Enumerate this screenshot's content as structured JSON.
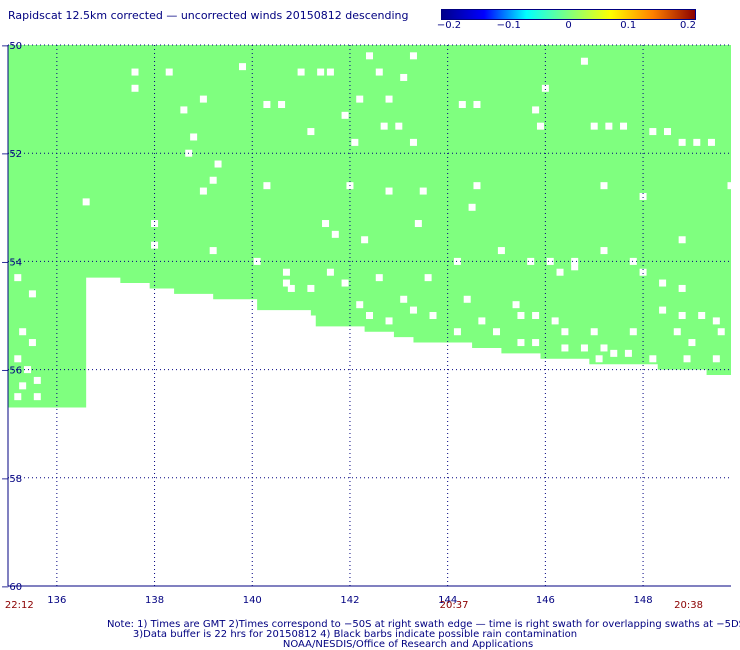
{
  "title": "Rapidscat 12.5km corrected — uncorrected winds 20150812 descending",
  "colorbar": {
    "ticks": [
      "−0.2",
      "−0.1",
      "0",
      "0.1",
      "0.2"
    ],
    "range": [
      -0.2,
      0.2
    ],
    "stops": [
      "#00008b",
      "#0000ff",
      "#00ffff",
      "#7fff7f",
      "#ffff00",
      "#ff8000",
      "#8b0000"
    ]
  },
  "chart_data": {
    "type": "heatmap",
    "x_ticks": [
      "136",
      "138",
      "140",
      "142",
      "144",
      "146",
      "148"
    ],
    "y_ticks": [
      "−50",
      "−52",
      "−54",
      "−56",
      "−58",
      "−60"
    ],
    "xlim": [
      135.0,
      149.8
    ],
    "ylim": [
      -60,
      -50
    ],
    "grid": true,
    "swath_value": 0.0,
    "swath_color": "#7fff7f",
    "swath_boundary": {
      "lon": [
        135.0,
        135.5,
        136.0,
        136.6,
        136.7,
        137.3,
        137.5,
        137.9,
        138.0,
        138.4,
        138.5,
        139.2,
        139.3,
        140.1,
        140.4,
        141.2,
        141.3,
        142.3,
        142.5,
        142.9,
        143.3,
        143.8,
        144.0,
        144.5,
        145.1,
        145.9,
        146.4,
        146.9,
        147.4,
        147.9,
        148.3,
        148.7,
        149.0,
        149.3,
        149.6,
        149.8
      ],
      "lat": [
        -56.7,
        -56.7,
        -56.7,
        -56.7,
        -54.3,
        -54.3,
        -54.4,
        -54.4,
        -54.5,
        -54.5,
        -54.6,
        -54.6,
        -54.7,
        -54.7,
        -54.9,
        -54.9,
        -55.0,
        -55.2,
        -55.3,
        -55.3,
        -55.4,
        -55.5,
        -55.5,
        -55.5,
        -55.6,
        -55.7,
        -55.8,
        -55.8,
        -55.9,
        -55.9,
        -55.9,
        -56.0,
        -56.0,
        -56.0,
        -56.1,
        -56.1
      ]
    },
    "missing_cells": [
      [
        137.6,
        -50.5
      ],
      [
        137.6,
        -50.8
      ],
      [
        138.3,
        -50.5
      ],
      [
        139.8,
        -50.4
      ],
      [
        141.0,
        -50.5
      ],
      [
        141.4,
        -50.5
      ],
      [
        141.6,
        -50.5
      ],
      [
        142.4,
        -50.2
      ],
      [
        142.6,
        -50.5
      ],
      [
        143.3,
        -50.2
      ],
      [
        143.1,
        -50.6
      ],
      [
        146.8,
        -50.3
      ],
      [
        146.0,
        -50.8
      ],
      [
        138.6,
        -51.2
      ],
      [
        139.0,
        -51.0
      ],
      [
        140.3,
        -51.1
      ],
      [
        140.6,
        -51.1
      ],
      [
        141.9,
        -51.3
      ],
      [
        142.2,
        -51.0
      ],
      [
        142.8,
        -51.0
      ],
      [
        144.3,
        -51.1
      ],
      [
        144.6,
        -51.1
      ],
      [
        145.8,
        -51.2
      ],
      [
        145.9,
        -51.5
      ],
      [
        147.0,
        -51.5
      ],
      [
        147.3,
        -51.5
      ],
      [
        147.6,
        -51.5
      ],
      [
        148.2,
        -51.6
      ],
      [
        148.5,
        -51.6
      ],
      [
        148.8,
        -51.8
      ],
      [
        149.1,
        -51.8
      ],
      [
        149.4,
        -51.8
      ],
      [
        141.2,
        -51.6
      ],
      [
        142.1,
        -51.8
      ],
      [
        142.7,
        -51.5
      ],
      [
        143.0,
        -51.5
      ],
      [
        143.3,
        -51.8
      ],
      [
        138.8,
        -51.7
      ],
      [
        138.7,
        -52.0
      ],
      [
        139.3,
        -52.2
      ],
      [
        139.2,
        -52.5
      ],
      [
        139.0,
        -52.7
      ],
      [
        136.6,
        -52.9
      ],
      [
        140.3,
        -52.6
      ],
      [
        142.0,
        -52.6
      ],
      [
        142.8,
        -52.7
      ],
      [
        143.5,
        -52.7
      ],
      [
        144.6,
        -52.6
      ],
      [
        144.5,
        -53.0
      ],
      [
        147.2,
        -52.6
      ],
      [
        148.0,
        -52.8
      ],
      [
        149.8,
        -52.6
      ],
      [
        138.0,
        -53.3
      ],
      [
        138.0,
        -53.7
      ],
      [
        139.2,
        -53.8
      ],
      [
        140.1,
        -54.0
      ],
      [
        141.5,
        -53.3
      ],
      [
        141.7,
        -53.5
      ],
      [
        142.3,
        -53.6
      ],
      [
        143.4,
        -53.3
      ],
      [
        144.2,
        -54.0
      ],
      [
        145.1,
        -53.8
      ],
      [
        145.7,
        -54.0
      ],
      [
        146.1,
        -54.0
      ],
      [
        146.6,
        -54.0
      ],
      [
        147.2,
        -53.8
      ],
      [
        147.8,
        -54.0
      ],
      [
        148.8,
        -53.6
      ],
      [
        135.2,
        -54.3
      ],
      [
        135.5,
        -54.6
      ],
      [
        140.7,
        -54.2
      ],
      [
        140.7,
        -54.4
      ],
      [
        140.8,
        -54.5
      ],
      [
        141.6,
        -54.2
      ],
      [
        141.2,
        -54.5
      ],
      [
        141.9,
        -54.4
      ],
      [
        142.6,
        -54.3
      ],
      [
        143.6,
        -54.3
      ],
      [
        146.3,
        -54.2
      ],
      [
        146.6,
        -54.1
      ],
      [
        148.0,
        -54.2
      ],
      [
        148.4,
        -54.4
      ],
      [
        148.8,
        -54.5
      ],
      [
        142.2,
        -54.8
      ],
      [
        143.1,
        -54.7
      ],
      [
        142.4,
        -55.0
      ],
      [
        143.3,
        -54.9
      ],
      [
        142.8,
        -55.1
      ],
      [
        143.7,
        -55.0
      ],
      [
        144.4,
        -54.7
      ],
      [
        144.7,
        -55.1
      ],
      [
        145.4,
        -54.8
      ],
      [
        145.5,
        -55.0
      ],
      [
        144.2,
        -55.3
      ],
      [
        145.0,
        -55.3
      ],
      [
        145.8,
        -55.0
      ],
      [
        146.2,
        -55.1
      ],
      [
        146.4,
        -55.3
      ],
      [
        147.0,
        -55.3
      ],
      [
        147.8,
        -55.3
      ],
      [
        148.4,
        -54.9
      ],
      [
        148.8,
        -55.0
      ],
      [
        149.2,
        -55.0
      ],
      [
        149.5,
        -55.1
      ],
      [
        149.6,
        -55.3
      ],
      [
        148.7,
        -55.3
      ],
      [
        149.0,
        -55.5
      ],
      [
        147.2,
        -55.6
      ],
      [
        147.4,
        -55.7
      ],
      [
        147.7,
        -55.7
      ],
      [
        148.2,
        -55.8
      ],
      [
        148.9,
        -55.8
      ],
      [
        149.5,
        -55.8
      ],
      [
        145.5,
        -55.5
      ],
      [
        145.8,
        -55.5
      ],
      [
        146.4,
        -55.6
      ],
      [
        146.8,
        -55.6
      ],
      [
        147.1,
        -55.8
      ],
      [
        135.3,
        -55.3
      ],
      [
        135.5,
        -55.5
      ],
      [
        135.2,
        -55.8
      ],
      [
        135.4,
        -56.0
      ],
      [
        135.6,
        -56.2
      ],
      [
        135.3,
        -56.3
      ],
      [
        135.2,
        -56.5
      ],
      [
        135.6,
        -56.5
      ]
    ],
    "time_labels": [
      {
        "text": "22:12",
        "lon": 135.1
      },
      {
        "text": "20:37",
        "lon": 144.0
      },
      {
        "text": "20:38",
        "lon": 148.8
      }
    ]
  },
  "notes": [
    "Note: 1) Times are GMT 2)Times correspond to −50S at right swath edge — time is right swath for overlapping swaths at −5DS",
    "3)Data buffer is 22 hrs for 20150812 4) Black barbs indicate possible rain contamination",
    "NOAA/NESDIS/Office of Research and Applications"
  ],
  "colors": {
    "axis": "#000080",
    "time_label": "#8b0000",
    "missing": "#ffffff"
  }
}
